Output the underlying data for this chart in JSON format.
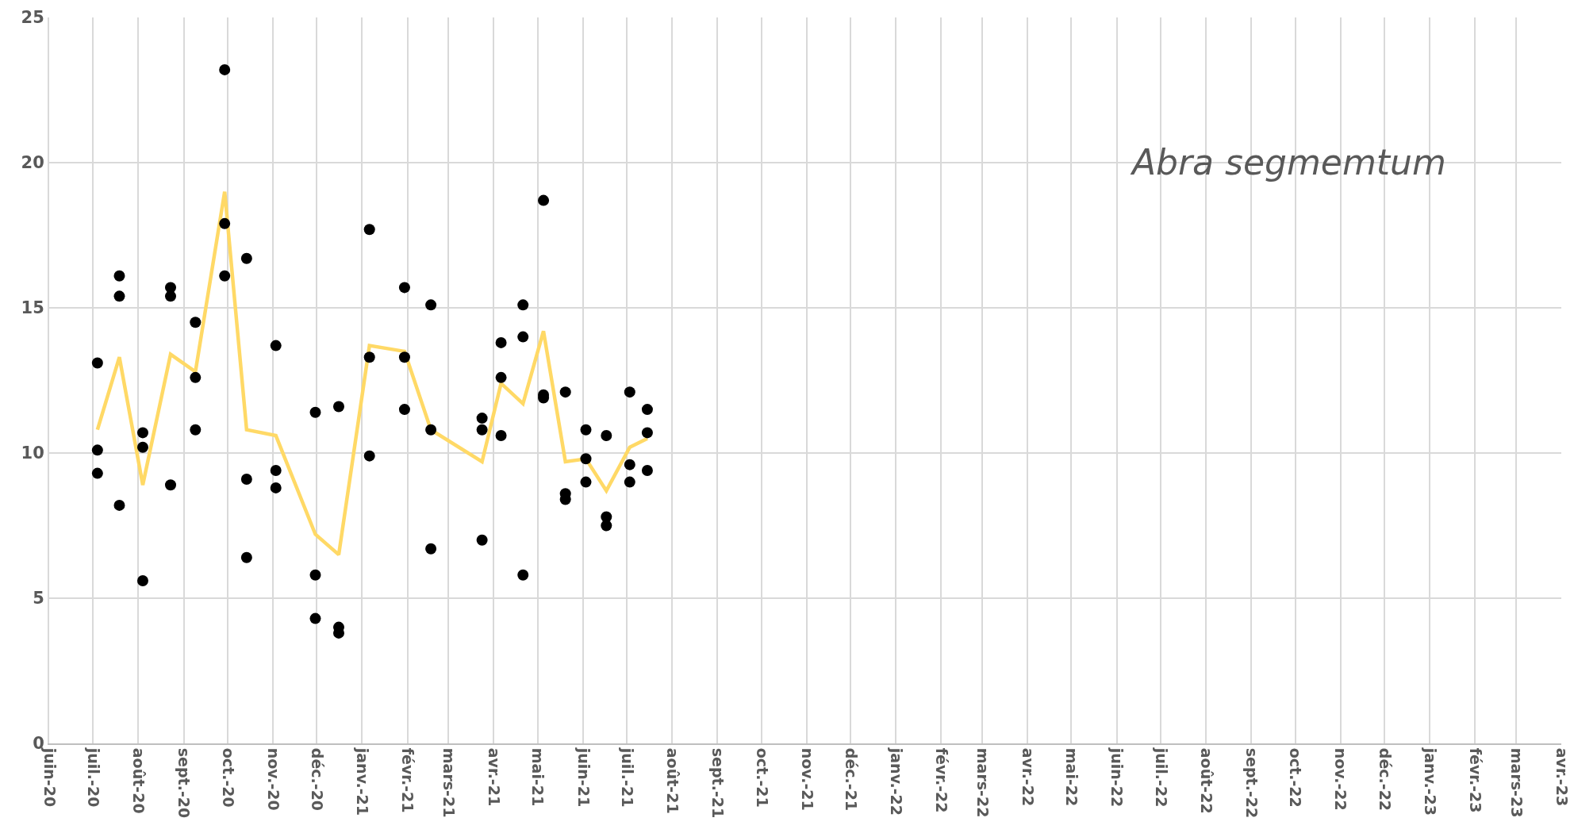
{
  "chart_data": {
    "type": "scatter",
    "marker": "circle",
    "grid": true,
    "annotations": [
      "Abra segmemtum"
    ],
    "xlim": [
      "2020-06-01",
      "2023-04-01"
    ],
    "xticks": [
      {
        "value": "2020-06-01",
        "label": "juin-20"
      },
      {
        "value": "2020-07-01",
        "label": "juil.-20"
      },
      {
        "value": "2020-08-01",
        "label": "août-20"
      },
      {
        "value": "2020-09-01",
        "label": "sept.-20"
      },
      {
        "value": "2020-10-01",
        "label": "oct.-20"
      },
      {
        "value": "2020-11-01",
        "label": "nov.-20"
      },
      {
        "value": "2020-12-01",
        "label": "déc.-20"
      },
      {
        "value": "2021-01-01",
        "label": "janv.-21"
      },
      {
        "value": "2021-02-01",
        "label": "févr.-21"
      },
      {
        "value": "2021-03-01",
        "label": "mars-21"
      },
      {
        "value": "2021-04-01",
        "label": "avr.-21"
      },
      {
        "value": "2021-05-01",
        "label": "mai-21"
      },
      {
        "value": "2021-06-01",
        "label": "juin-21"
      },
      {
        "value": "2021-07-01",
        "label": "juil.-21"
      },
      {
        "value": "2021-08-01",
        "label": "août-21"
      },
      {
        "value": "2021-09-01",
        "label": "sept.-21"
      },
      {
        "value": "2021-10-01",
        "label": "oct.-21"
      },
      {
        "value": "2021-11-01",
        "label": "nov.-21"
      },
      {
        "value": "2021-12-01",
        "label": "déc.-21"
      },
      {
        "value": "2022-01-01",
        "label": "janv.-22"
      },
      {
        "value": "2022-02-01",
        "label": "févr.-22"
      },
      {
        "value": "2022-03-01",
        "label": "mars-22"
      },
      {
        "value": "2022-04-01",
        "label": "avr.-22"
      },
      {
        "value": "2022-05-01",
        "label": "mai-22"
      },
      {
        "value": "2022-06-01",
        "label": "juin-22"
      },
      {
        "value": "2022-07-01",
        "label": "juil.-22"
      },
      {
        "value": "2022-08-01",
        "label": "août-22"
      },
      {
        "value": "2022-09-01",
        "label": "sept.-22"
      },
      {
        "value": "2022-10-01",
        "label": "oct.-22"
      },
      {
        "value": "2022-11-01",
        "label": "nov.-22"
      },
      {
        "value": "2022-12-01",
        "label": "déc.-22"
      },
      {
        "value": "2023-01-01",
        "label": "janv.-23"
      },
      {
        "value": "2023-02-01",
        "label": "févr.-23"
      },
      {
        "value": "2023-03-01",
        "label": "mars-23"
      },
      {
        "value": "2023-04-01",
        "label": "avr.-23"
      }
    ],
    "ylim": [
      0,
      25
    ],
    "yticks": [
      0,
      5,
      10,
      15,
      20,
      25
    ],
    "series": [
      {
        "color": "#000000",
        "x": [
          "2020-07-04",
          "2020-07-04",
          "2020-07-04",
          "2020-07-19",
          "2020-07-19",
          "2020-07-19",
          "2020-08-04",
          "2020-08-04",
          "2020-08-04",
          "2020-08-23",
          "2020-08-23",
          "2020-08-23",
          "2020-09-09",
          "2020-09-09",
          "2020-09-09",
          "2020-09-29",
          "2020-09-29",
          "2020-09-29",
          "2020-10-14",
          "2020-10-14",
          "2020-10-14",
          "2020-11-03",
          "2020-11-03",
          "2020-11-03",
          "2020-11-30",
          "2020-11-30",
          "2020-11-30",
          "2020-12-16",
          "2020-12-16",
          "2020-12-16",
          "2021-01-06",
          "2021-01-06",
          "2021-01-06",
          "2021-01-30",
          "2021-01-30",
          "2021-01-30",
          "2021-02-17",
          "2021-02-17",
          "2021-02-17",
          "2021-03-24",
          "2021-03-24",
          "2021-03-24",
          "2021-04-06",
          "2021-04-06",
          "2021-04-06",
          "2021-04-21",
          "2021-04-21",
          "2021-04-21",
          "2021-05-05",
          "2021-05-05",
          "2021-05-05",
          "2021-05-20",
          "2021-05-20",
          "2021-05-20",
          "2021-06-03",
          "2021-06-03",
          "2021-06-03",
          "2021-06-17",
          "2021-06-17",
          "2021-06-17",
          "2021-07-03",
          "2021-07-03",
          "2021-07-03",
          "2021-07-15",
          "2021-07-15",
          "2021-07-15"
        ],
        "values": [
          13.1,
          10.1,
          9.3,
          16.1,
          15.4,
          8.2,
          10.7,
          10.2,
          5.6,
          15.7,
          15.4,
          8.9,
          14.5,
          12.6,
          10.8,
          23.2,
          17.9,
          16.1,
          16.7,
          9.1,
          6.4,
          13.7,
          9.4,
          8.8,
          11.4,
          5.8,
          4.3,
          11.6,
          4.0,
          3.8,
          17.7,
          13.3,
          9.9,
          15.7,
          13.3,
          11.5,
          15.1,
          10.8,
          6.7,
          11.2,
          10.8,
          7.0,
          13.8,
          12.6,
          10.6,
          15.1,
          14.0,
          5.8,
          18.7,
          12.0,
          11.9,
          12.1,
          8.6,
          8.4,
          10.8,
          9.8,
          9.0,
          10.6,
          7.8,
          7.5,
          12.1,
          9.6,
          9.0,
          11.5,
          10.7,
          9.4
        ]
      },
      {
        "type": "line",
        "marker": "none",
        "color": "#ffd966",
        "x": [
          "2020-07-04",
          "2020-07-19",
          "2020-08-04",
          "2020-08-23",
          "2020-09-09",
          "2020-09-29",
          "2020-10-14",
          "2020-11-03",
          "2020-11-30",
          "2020-12-16",
          "2021-01-06",
          "2021-01-30",
          "2021-02-17",
          "2021-03-24",
          "2021-04-06",
          "2021-04-21",
          "2021-05-05",
          "2021-05-20",
          "2021-06-03",
          "2021-06-17",
          "2021-07-03",
          "2021-07-15"
        ],
        "values": [
          10.8,
          13.3,
          8.9,
          13.4,
          12.8,
          19.0,
          10.8,
          10.6,
          7.2,
          6.5,
          13.7,
          13.5,
          10.8,
          9.7,
          12.4,
          11.7,
          14.2,
          9.7,
          9.8,
          8.7,
          10.2,
          10.5
        ]
      }
    ]
  }
}
